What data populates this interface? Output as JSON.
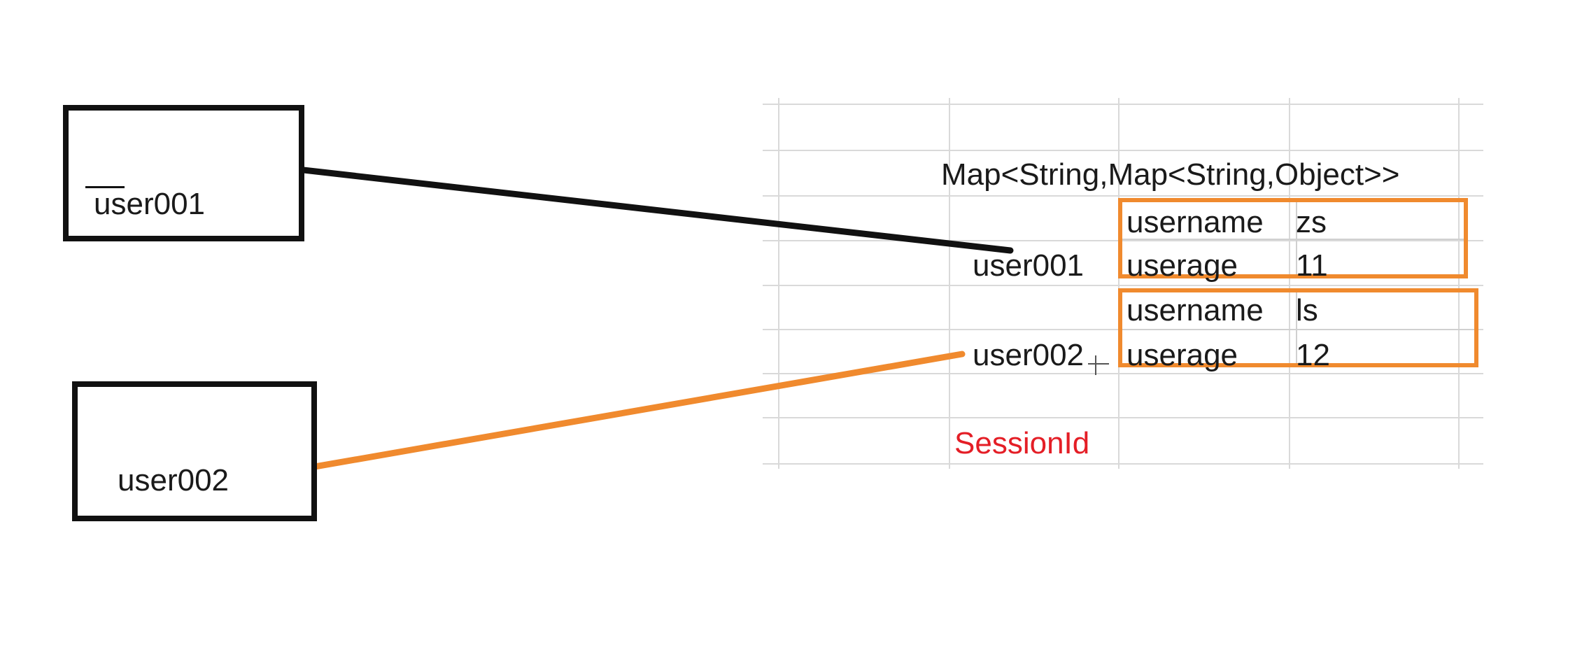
{
  "client_boxes": [
    {
      "label": "user001"
    },
    {
      "label": "user002"
    }
  ],
  "map_type": "Map<String,Map<String,Object>>",
  "session_keys": [
    {
      "key": "user001",
      "entries": [
        {
          "field": "username",
          "value": "zs"
        },
        {
          "field": "userage",
          "value": "11"
        }
      ]
    },
    {
      "key": "user002",
      "entries": [
        {
          "field": "username",
          "value": "ls"
        },
        {
          "field": "userage",
          "value": "12"
        }
      ]
    }
  ],
  "session_label": "SessionId",
  "colors": {
    "line_user001": "#111111",
    "line_user002": "#f08a2e",
    "entry_box_border": "#f08a2e",
    "session_label": "#e41e26",
    "grid": "#d9d9d9"
  }
}
